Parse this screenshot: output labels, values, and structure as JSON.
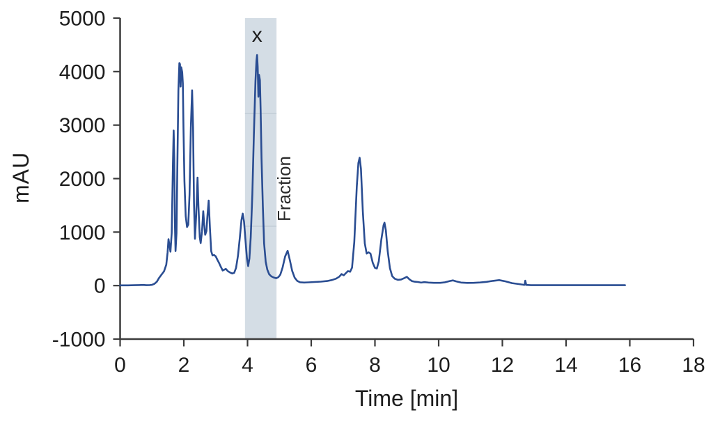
{
  "chart_data": {
    "type": "line",
    "title": "",
    "xlabel": "Time [min]",
    "ylabel": "mAU",
    "xlim": [
      0,
      18
    ],
    "ylim": [
      -1000,
      5000
    ],
    "x_ticks": [
      0,
      2,
      4,
      6,
      8,
      10,
      12,
      14,
      16,
      18
    ],
    "y_ticks": [
      5000,
      4000,
      3000,
      2000,
      1000,
      0,
      -1000
    ],
    "grid": false,
    "legend": null,
    "colors": {
      "line": "#2a4d92",
      "band": "#d4dde5",
      "band_divider": "#bdc8d2",
      "axis": "#3b3b3b",
      "text": "#1c1c1c",
      "background": "#ffffff"
    },
    "annotations": {
      "fraction_band": {
        "label": "Fraction",
        "x0": 3.92,
        "x1": 4.91,
        "divider_values": [
          3220,
          1110
        ]
      },
      "peak_marker": {
        "label": "x",
        "x": 4.3,
        "y": 4680
      }
    },
    "series": [
      {
        "name": "chromatogram-trace",
        "points": [
          [
            0,
            5
          ],
          [
            0.25,
            5
          ],
          [
            0.45,
            7
          ],
          [
            0.6,
            10
          ],
          [
            0.72,
            13
          ],
          [
            0.82,
            8
          ],
          [
            0.92,
            9
          ],
          [
            1.0,
            14
          ],
          [
            1.08,
            35
          ],
          [
            1.15,
            70
          ],
          [
            1.22,
            140
          ],
          [
            1.3,
            205
          ],
          [
            1.38,
            268
          ],
          [
            1.45,
            390
          ],
          [
            1.49,
            620
          ],
          [
            1.52,
            868
          ],
          [
            1.55,
            750
          ],
          [
            1.58,
            635
          ],
          [
            1.62,
            980
          ],
          [
            1.66,
            2300
          ],
          [
            1.68,
            2900
          ],
          [
            1.7,
            2380
          ],
          [
            1.72,
            1150
          ],
          [
            1.74,
            645
          ],
          [
            1.77,
            980
          ],
          [
            1.8,
            2300
          ],
          [
            1.83,
            3650
          ],
          [
            1.86,
            4160
          ],
          [
            1.88,
            4140
          ],
          [
            1.9,
            3720
          ],
          [
            1.92,
            4080
          ],
          [
            1.95,
            3990
          ],
          [
            1.97,
            3780
          ],
          [
            1.99,
            2950
          ],
          [
            2.02,
            1950
          ],
          [
            2.06,
            1300
          ],
          [
            2.1,
            1095
          ],
          [
            2.14,
            1140
          ],
          [
            2.18,
            1700
          ],
          [
            2.22,
            2950
          ],
          [
            2.26,
            3650
          ],
          [
            2.29,
            2950
          ],
          [
            2.32,
            1550
          ],
          [
            2.35,
            875
          ],
          [
            2.39,
            1320
          ],
          [
            2.43,
            2020
          ],
          [
            2.46,
            1480
          ],
          [
            2.5,
            905
          ],
          [
            2.53,
            795
          ],
          [
            2.57,
            1010
          ],
          [
            2.61,
            1390
          ],
          [
            2.64,
            1140
          ],
          [
            2.67,
            950
          ],
          [
            2.71,
            1020
          ],
          [
            2.74,
            1300
          ],
          [
            2.78,
            1590
          ],
          [
            2.82,
            1080
          ],
          [
            2.86,
            645
          ],
          [
            2.9,
            563
          ],
          [
            2.95,
            572
          ],
          [
            3.0,
            548
          ],
          [
            3.05,
            487
          ],
          [
            3.1,
            432
          ],
          [
            3.16,
            352
          ],
          [
            3.22,
            282
          ],
          [
            3.27,
            298
          ],
          [
            3.32,
            312
          ],
          [
            3.38,
            272
          ],
          [
            3.45,
            246
          ],
          [
            3.52,
            226
          ],
          [
            3.58,
            238
          ],
          [
            3.64,
            330
          ],
          [
            3.7,
            560
          ],
          [
            3.76,
            905
          ],
          [
            3.81,
            1225
          ],
          [
            3.85,
            1345
          ],
          [
            3.89,
            1195
          ],
          [
            3.93,
            890
          ],
          [
            3.98,
            515
          ],
          [
            4.02,
            365
          ],
          [
            4.06,
            505
          ],
          [
            4.1,
            905
          ],
          [
            4.15,
            1700
          ],
          [
            4.2,
            2820
          ],
          [
            4.25,
            3820
          ],
          [
            4.28,
            4200
          ],
          [
            4.3,
            4310
          ],
          [
            4.32,
            4090
          ],
          [
            4.34,
            3530
          ],
          [
            4.36,
            3940
          ],
          [
            4.39,
            3840
          ],
          [
            4.41,
            3290
          ],
          [
            4.44,
            2380
          ],
          [
            4.48,
            1480
          ],
          [
            4.52,
            790
          ],
          [
            4.57,
            445
          ],
          [
            4.62,
            298
          ],
          [
            4.68,
            212
          ],
          [
            4.75,
            172
          ],
          [
            4.82,
            152
          ],
          [
            4.9,
            138
          ],
          [
            4.97,
            158
          ],
          [
            5.03,
            205
          ],
          [
            5.1,
            335
          ],
          [
            5.18,
            545
          ],
          [
            5.26,
            650
          ],
          [
            5.33,
            475
          ],
          [
            5.4,
            275
          ],
          [
            5.48,
            148
          ],
          [
            5.56,
            88
          ],
          [
            5.65,
            62
          ],
          [
            5.78,
            57
          ],
          [
            5.92,
            61
          ],
          [
            6.1,
            67
          ],
          [
            6.3,
            74
          ],
          [
            6.5,
            86
          ],
          [
            6.65,
            104
          ],
          [
            6.78,
            130
          ],
          [
            6.88,
            168
          ],
          [
            6.95,
            215
          ],
          [
            7.02,
            192
          ],
          [
            7.08,
            228
          ],
          [
            7.15,
            270
          ],
          [
            7.22,
            258
          ],
          [
            7.28,
            335
          ],
          [
            7.35,
            810
          ],
          [
            7.43,
            1850
          ],
          [
            7.48,
            2290
          ],
          [
            7.52,
            2390
          ],
          [
            7.56,
            2180
          ],
          [
            7.62,
            1380
          ],
          [
            7.68,
            790
          ],
          [
            7.74,
            598
          ],
          [
            7.8,
            622
          ],
          [
            7.86,
            598
          ],
          [
            7.93,
            428
          ],
          [
            8.0,
            332
          ],
          [
            8.06,
            318
          ],
          [
            8.12,
            452
          ],
          [
            8.2,
            855
          ],
          [
            8.27,
            1130
          ],
          [
            8.3,
            1175
          ],
          [
            8.34,
            1040
          ],
          [
            8.4,
            645
          ],
          [
            8.47,
            328
          ],
          [
            8.54,
            178
          ],
          [
            8.62,
            128
          ],
          [
            8.72,
            108
          ],
          [
            8.82,
            114
          ],
          [
            8.92,
            140
          ],
          [
            9.0,
            164
          ],
          [
            9.08,
            118
          ],
          [
            9.16,
            84
          ],
          [
            9.25,
            72
          ],
          [
            9.35,
            67
          ],
          [
            9.45,
            55
          ],
          [
            9.55,
            64
          ],
          [
            9.68,
            57
          ],
          [
            9.85,
            52
          ],
          [
            10.05,
            52
          ],
          [
            10.2,
            62
          ],
          [
            10.35,
            85
          ],
          [
            10.45,
            97
          ],
          [
            10.55,
            79
          ],
          [
            10.7,
            57
          ],
          [
            10.9,
            50
          ],
          [
            11.1,
            52
          ],
          [
            11.3,
            58
          ],
          [
            11.5,
            70
          ],
          [
            11.7,
            88
          ],
          [
            11.9,
            103
          ],
          [
            12.1,
            79
          ],
          [
            12.3,
            47
          ],
          [
            12.5,
            29
          ],
          [
            12.65,
            17
          ],
          [
            12.7,
            14
          ],
          [
            12.72,
            92
          ],
          [
            12.75,
            12
          ],
          [
            12.9,
            8
          ],
          [
            13.3,
            8
          ],
          [
            13.8,
            8
          ],
          [
            14.4,
            8
          ],
          [
            15.0,
            8
          ],
          [
            15.5,
            8
          ],
          [
            15.85,
            8
          ]
        ]
      }
    ]
  }
}
